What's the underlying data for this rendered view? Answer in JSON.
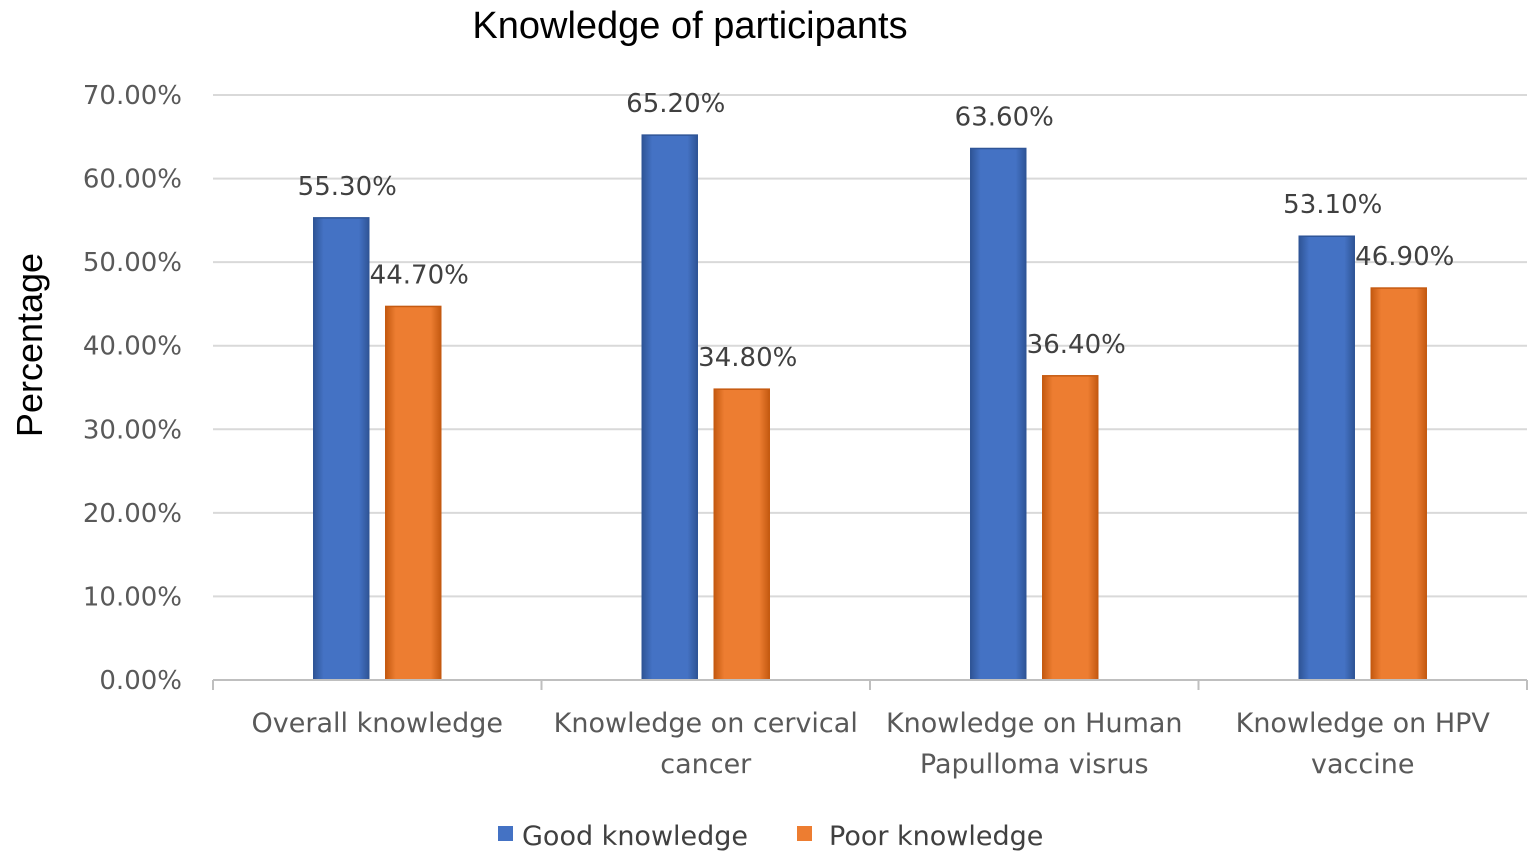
{
  "chart_data": {
    "type": "bar",
    "title": "Knowledge of participants",
    "xlabel": "",
    "ylabel": "Percentage",
    "ylim": [
      0,
      70
    ],
    "yticks": [
      "0.00%",
      "10.00%",
      "20.00%",
      "30.00%",
      "40.00%",
      "50.00%",
      "60.00%",
      "70.00%"
    ],
    "categories": [
      [
        "Overall knowledge"
      ],
      [
        "Knowledge on cervical",
        "cancer"
      ],
      [
        "Knowledge on Human",
        "Papulloma visrus"
      ],
      [
        "Knowledge on HPV",
        "vaccine"
      ]
    ],
    "series": [
      {
        "name": "Good knowledge",
        "color": "#4472C4",
        "values": [
          55.3,
          65.2,
          63.6,
          53.1
        ],
        "labels": [
          "55.30%",
          "65.20%",
          "63.60%",
          "53.10%"
        ]
      },
      {
        "name": "Poor knowledge",
        "color": "#ED7D31",
        "values": [
          44.7,
          34.8,
          36.4,
          46.9
        ],
        "labels": [
          "44.70%",
          "34.80%",
          "36.40%",
          "46.90%"
        ]
      }
    ],
    "grid": true,
    "legend_position": "bottom"
  }
}
